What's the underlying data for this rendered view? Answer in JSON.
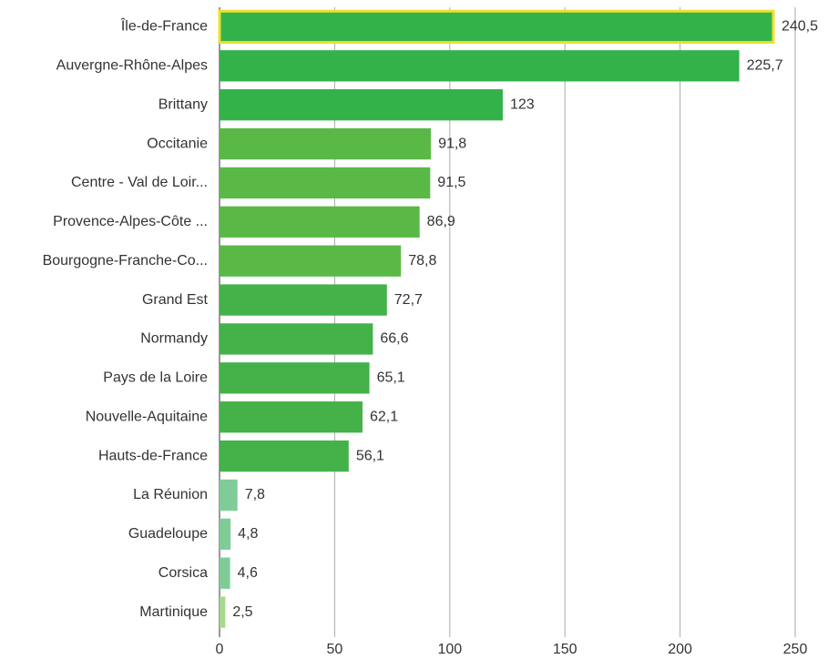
{
  "chart_data": {
    "type": "barh",
    "categories": [
      "Île-de-France",
      "Auvergne-Rhône-Alpes",
      "Brittany",
      "Occitanie",
      "Centre - Val de Loir...",
      "Provence-Alpes-Côte ...",
      "Bourgogne-Franche-Co...",
      "Grand Est",
      "Normandy",
      "Pays de la Loire",
      "Nouvelle-Aquitaine",
      "Hauts-de-France",
      "La Réunion",
      "Guadeloupe",
      "Corsica",
      "Martinique"
    ],
    "values": [
      240.5,
      225.7,
      123,
      91.8,
      91.5,
      86.9,
      78.8,
      72.7,
      66.6,
      65.1,
      62.1,
      56.1,
      7.8,
      4.8,
      4.6,
      2.5
    ],
    "value_labels": [
      "240,5",
      "225,7",
      "123",
      "91,8",
      "91,5",
      "86,9",
      "78,8",
      "72,7",
      "66,6",
      "65,1",
      "62,1",
      "56,1",
      "7,8",
      "4,8",
      "4,6",
      "2,5"
    ],
    "colors": [
      "#33b24a",
      "#33b24a",
      "#33b24a",
      "#5ab946",
      "#5ab946",
      "#5ab946",
      "#5ab946",
      "#44b249",
      "#44b249",
      "#44b249",
      "#44b249",
      "#44b249",
      "#80cc99",
      "#80cc99",
      "#80cc99",
      "#a6d98c"
    ],
    "highlight": "Île-de-France",
    "highlight_color": "#eee02c",
    "label_color": "#7cc46a",
    "xlim": [
      0,
      250
    ],
    "xticks": [
      0,
      50,
      100,
      150,
      200,
      250
    ],
    "grid": true
  }
}
